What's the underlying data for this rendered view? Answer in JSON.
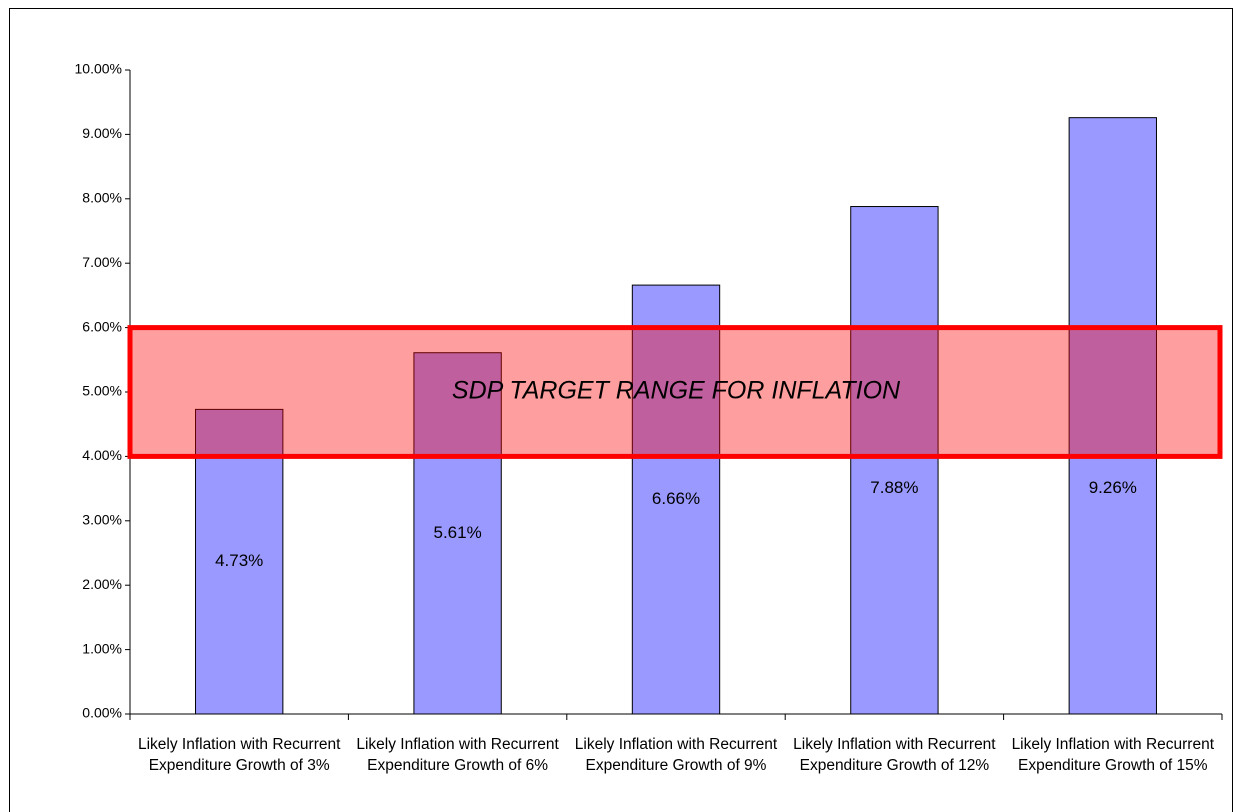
{
  "chart_data": {
    "type": "bar",
    "categories": [
      "Likely Inflation with Recurrent Expenditure Growth of 3%",
      "Likely Inflation with Recurrent Expenditure Growth of 6%",
      "Likely Inflation with Recurrent Expenditure Growth of 9%",
      "Likely Inflation with Recurrent Expenditure Growth of 12%",
      "Likely Inflation with Recurrent Expenditure Growth of 15%"
    ],
    "values": [
      4.73,
      5.61,
      6.66,
      7.88,
      9.26
    ],
    "value_labels": [
      "4.73%",
      "5.61%",
      "6.66%",
      "7.88%",
      "9.26%"
    ],
    "color": "#9999ff",
    "ylim": [
      0,
      10
    ],
    "yticks": [
      {
        "value": 0,
        "label": "0.00%"
      },
      {
        "value": 1,
        "label": "1.00%"
      },
      {
        "value": 2,
        "label": "2.00%"
      },
      {
        "value": 3,
        "label": "3.00%"
      },
      {
        "value": 4,
        "label": "4.00%"
      },
      {
        "value": 5,
        "label": "5.00%"
      },
      {
        "value": 6,
        "label": "6.00%"
      },
      {
        "value": 7,
        "label": "7.00%"
      },
      {
        "value": 8,
        "label": "8.00%"
      },
      {
        "value": 9,
        "label": "9.00%"
      },
      {
        "value": 10,
        "label": "10.00%"
      }
    ],
    "grid": false,
    "target_band": {
      "from": 4,
      "to": 6,
      "label": "SDP TARGET RANGE FOR INFLATION",
      "color": "#ff0000"
    }
  }
}
